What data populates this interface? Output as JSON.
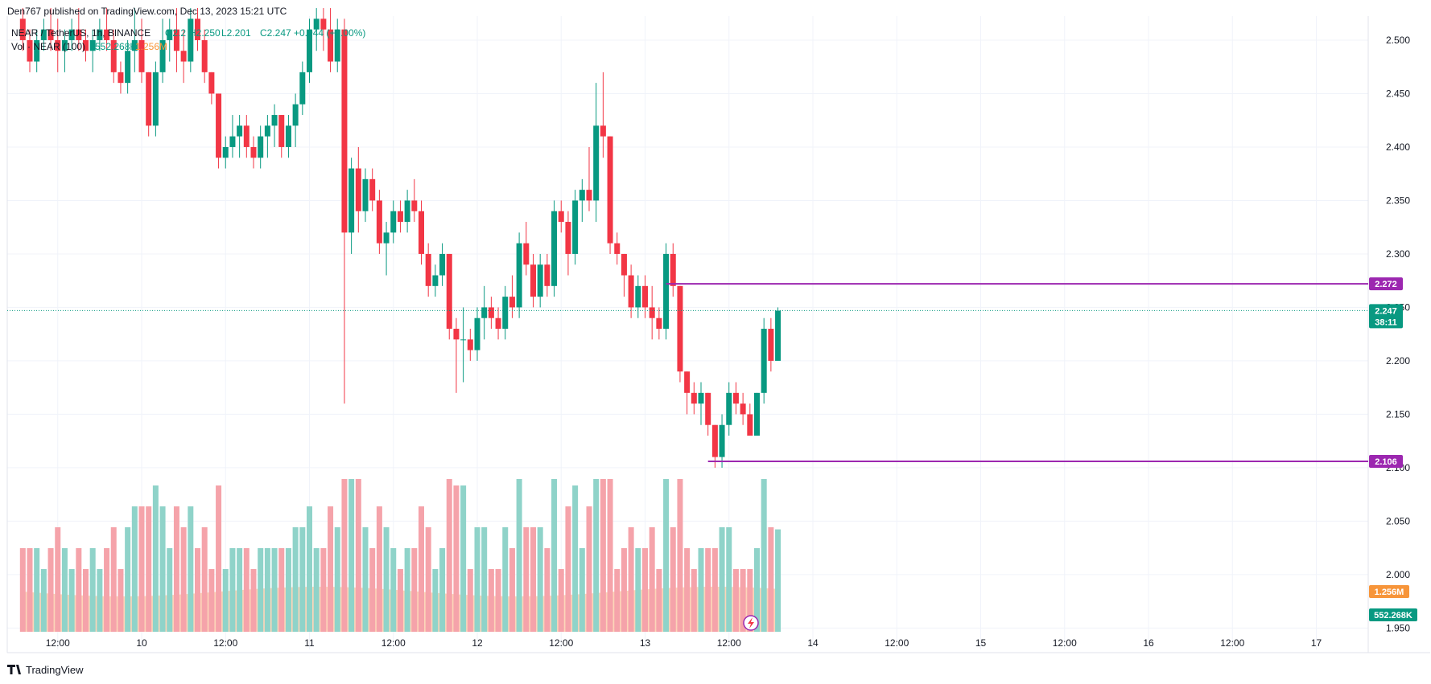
{
  "header": {
    "published_line": "Den767 published on TradingView.com, Dec 13, 2023 15:21 UTC"
  },
  "legend": {
    "symbol_line": {
      "symbol": "NEAR / TetherUS, 1h, BINANCE",
      "open": "O2.2",
      "high": "H2.250",
      "low": "L2.201",
      "close": "C2.247",
      "change": "+0.044 (+2.00%)"
    },
    "volume_line": {
      "label": "Vol · NEAR (100)",
      "value1": "552.268K",
      "value2": "1.256M"
    }
  },
  "price_axis": {
    "ticks": [
      "2.500",
      "2.450",
      "2.400",
      "2.350",
      "2.300",
      "2.250",
      "2.200",
      "2.150",
      "2.100",
      "2.050",
      "2.000",
      "1.950"
    ],
    "tags": {
      "resistance": {
        "label": "2.272",
        "value": 2.272,
        "color": "#9c27b0"
      },
      "current": {
        "label": "2.247",
        "countdown": "38:11",
        "value": 2.247,
        "color": "#089981"
      },
      "support": {
        "label": "2.106",
        "value": 2.106,
        "color": "#9c27b0"
      },
      "vol_ma": {
        "label": "1.256M",
        "color": "#f7953a"
      },
      "vol": {
        "label": "552.268K",
        "color": "#089981"
      }
    }
  },
  "time_axis": {
    "ticks": [
      "12:00",
      "10",
      "12:00",
      "11",
      "12:00",
      "12",
      "12:00",
      "13",
      "12:00",
      "14",
      "12:00",
      "15",
      "12:00",
      "16",
      "12:00",
      "17"
    ]
  },
  "footer": {
    "brand": "TradingView"
  },
  "colors": {
    "up": "#089981",
    "down": "#f23645",
    "level_line": "#9c27b0",
    "vol_up": "#8fd3c9",
    "vol_down": "#f5a3aa",
    "vol_ma_fill": "#fbcba8"
  },
  "chart_data": {
    "type": "candlestick",
    "ylim": [
      1.93,
      2.512
    ],
    "levels": [
      2.272,
      2.106
    ],
    "x_start": "Dec 9 07:00",
    "interval": "1h",
    "candles": [
      [
        2.52,
        2.53,
        2.49,
        2.5
      ],
      [
        2.5,
        2.51,
        2.47,
        2.48
      ],
      [
        2.48,
        2.51,
        2.47,
        2.5
      ],
      [
        2.5,
        2.52,
        2.49,
        2.51
      ],
      [
        2.51,
        2.53,
        2.49,
        2.5
      ],
      [
        2.5,
        2.52,
        2.47,
        2.49
      ],
      [
        2.49,
        2.51,
        2.47,
        2.5
      ],
      [
        2.5,
        2.52,
        2.49,
        2.51
      ],
      [
        2.51,
        2.53,
        2.49,
        2.5
      ],
      [
        2.5,
        2.51,
        2.48,
        2.49
      ],
      [
        2.49,
        2.51,
        2.47,
        2.5
      ],
      [
        2.5,
        2.52,
        2.49,
        2.51
      ],
      [
        2.51,
        2.53,
        2.49,
        2.5
      ],
      [
        2.5,
        2.51,
        2.46,
        2.47
      ],
      [
        2.47,
        2.48,
        2.45,
        2.46
      ],
      [
        2.46,
        2.5,
        2.45,
        2.49
      ],
      [
        2.49,
        2.53,
        2.47,
        2.5
      ],
      [
        2.5,
        2.52,
        2.46,
        2.47
      ],
      [
        2.47,
        2.47,
        2.41,
        2.42
      ],
      [
        2.42,
        2.48,
        2.41,
        2.47
      ],
      [
        2.47,
        2.52,
        2.46,
        2.5
      ],
      [
        2.5,
        2.52,
        2.48,
        2.51
      ],
      [
        2.51,
        2.53,
        2.47,
        2.49
      ],
      [
        2.49,
        2.51,
        2.46,
        2.48
      ],
      [
        2.48,
        2.53,
        2.47,
        2.52
      ],
      [
        2.52,
        2.53,
        2.49,
        2.5
      ],
      [
        2.5,
        2.51,
        2.46,
        2.47
      ],
      [
        2.47,
        2.47,
        2.44,
        2.45
      ],
      [
        2.45,
        2.45,
        2.38,
        2.39
      ],
      [
        2.39,
        2.41,
        2.38,
        2.4
      ],
      [
        2.4,
        2.43,
        2.39,
        2.41
      ],
      [
        2.41,
        2.43,
        2.39,
        2.42
      ],
      [
        2.42,
        2.43,
        2.39,
        2.4
      ],
      [
        2.4,
        2.41,
        2.38,
        2.39
      ],
      [
        2.39,
        2.42,
        2.38,
        2.41
      ],
      [
        2.41,
        2.43,
        2.39,
        2.42
      ],
      [
        2.42,
        2.44,
        2.4,
        2.43
      ],
      [
        2.43,
        2.43,
        2.39,
        2.4
      ],
      [
        2.4,
        2.43,
        2.39,
        2.42
      ],
      [
        2.42,
        2.45,
        2.4,
        2.44
      ],
      [
        2.44,
        2.48,
        2.43,
        2.47
      ],
      [
        2.47,
        2.52,
        2.46,
        2.51
      ],
      [
        2.51,
        2.53,
        2.49,
        2.52
      ],
      [
        2.52,
        2.53,
        2.49,
        2.51
      ],
      [
        2.51,
        2.53,
        2.47,
        2.48
      ],
      [
        2.48,
        2.52,
        2.47,
        2.51
      ],
      [
        2.51,
        2.52,
        2.16,
        2.32
      ],
      [
        2.32,
        2.39,
        2.3,
        2.38
      ],
      [
        2.38,
        2.4,
        2.32,
        2.34
      ],
      [
        2.34,
        2.38,
        2.33,
        2.37
      ],
      [
        2.37,
        2.38,
        2.34,
        2.35
      ],
      [
        2.35,
        2.36,
        2.3,
        2.31
      ],
      [
        2.31,
        2.33,
        2.28,
        2.32
      ],
      [
        2.32,
        2.35,
        2.31,
        2.34
      ],
      [
        2.34,
        2.35,
        2.32,
        2.33
      ],
      [
        2.33,
        2.36,
        2.32,
        2.35
      ],
      [
        2.35,
        2.37,
        2.33,
        2.34
      ],
      [
        2.34,
        2.35,
        2.29,
        2.3
      ],
      [
        2.3,
        2.31,
        2.26,
        2.27
      ],
      [
        2.27,
        2.29,
        2.26,
        2.28
      ],
      [
        2.28,
        2.31,
        2.27,
        2.3
      ],
      [
        2.3,
        2.3,
        2.22,
        2.23
      ],
      [
        2.23,
        2.24,
        2.17,
        2.22
      ],
      [
        2.22,
        2.25,
        2.18,
        2.22
      ],
      [
        2.22,
        2.23,
        2.2,
        2.21
      ],
      [
        2.21,
        2.25,
        2.2,
        2.24
      ],
      [
        2.24,
        2.27,
        2.22,
        2.25
      ],
      [
        2.25,
        2.26,
        2.23,
        2.24
      ],
      [
        2.24,
        2.25,
        2.22,
        2.23
      ],
      [
        2.23,
        2.27,
        2.22,
        2.26
      ],
      [
        2.26,
        2.28,
        2.24,
        2.25
      ],
      [
        2.25,
        2.32,
        2.24,
        2.31
      ],
      [
        2.31,
        2.33,
        2.28,
        2.29
      ],
      [
        2.29,
        2.3,
        2.25,
        2.26
      ],
      [
        2.26,
        2.3,
        2.25,
        2.29
      ],
      [
        2.29,
        2.3,
        2.26,
        2.27
      ],
      [
        2.27,
        2.35,
        2.26,
        2.34
      ],
      [
        2.34,
        2.35,
        2.32,
        2.33
      ],
      [
        2.33,
        2.34,
        2.28,
        2.3
      ],
      [
        2.3,
        2.36,
        2.29,
        2.35
      ],
      [
        2.35,
        2.37,
        2.33,
        2.36
      ],
      [
        2.36,
        2.4,
        2.34,
        2.35
      ],
      [
        2.35,
        2.46,
        2.33,
        2.42
      ],
      [
        2.42,
        2.47,
        2.39,
        2.41
      ],
      [
        2.41,
        2.41,
        2.3,
        2.31
      ],
      [
        2.31,
        2.32,
        2.29,
        2.3
      ],
      [
        2.3,
        2.3,
        2.26,
        2.28
      ],
      [
        2.28,
        2.29,
        2.24,
        2.25
      ],
      [
        2.25,
        2.28,
        2.24,
        2.27
      ],
      [
        2.27,
        2.28,
        2.24,
        2.25
      ],
      [
        2.25,
        2.27,
        2.22,
        2.24
      ],
      [
        2.24,
        2.25,
        2.22,
        2.23
      ],
      [
        2.23,
        2.31,
        2.22,
        2.3
      ],
      [
        2.3,
        2.31,
        2.26,
        2.27
      ],
      [
        2.27,
        2.27,
        2.18,
        2.19
      ],
      [
        2.19,
        2.19,
        2.15,
        2.17
      ],
      [
        2.17,
        2.18,
        2.15,
        2.16
      ],
      [
        2.16,
        2.18,
        2.14,
        2.17
      ],
      [
        2.17,
        2.17,
        2.13,
        2.14
      ],
      [
        2.14,
        2.14,
        2.1,
        2.11
      ],
      [
        2.11,
        2.15,
        2.1,
        2.14
      ],
      [
        2.14,
        2.18,
        2.13,
        2.17
      ],
      [
        2.17,
        2.18,
        2.15,
        2.16
      ],
      [
        2.16,
        2.17,
        2.14,
        2.15
      ],
      [
        2.15,
        2.16,
        2.13,
        2.13
      ],
      [
        2.13,
        2.17,
        2.13,
        2.17
      ],
      [
        2.17,
        2.24,
        2.16,
        2.23
      ],
      [
        2.23,
        2.24,
        2.19,
        2.2
      ],
      [
        2.2,
        2.25,
        2.201,
        2.247
      ]
    ],
    "volume_ma_label": "1.256M",
    "volume_label": "552.268K"
  }
}
